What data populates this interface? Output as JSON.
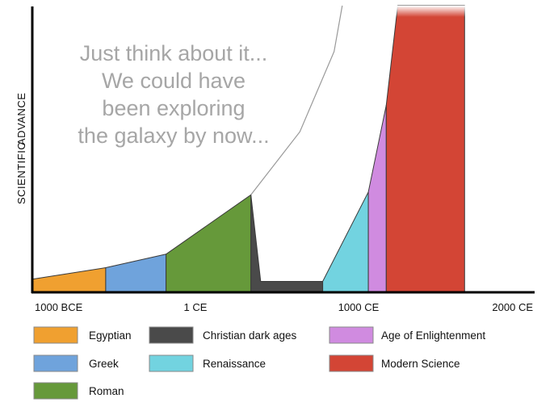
{
  "chart_data": {
    "type": "area",
    "title": "",
    "xlabel": "",
    "ylabel": [
      "SCIENTIFIC",
      "ADVANCE"
    ],
    "xlim": [
      -1000,
      2000
    ],
    "ylim": [
      0,
      100
    ],
    "grid": false,
    "x_ticks": [
      {
        "value": -1000,
        "label": "1000 BCE"
      },
      {
        "value": 0,
        "label": "1 CE"
      },
      {
        "value": 1000,
        "label": "1000 CE"
      },
      {
        "value": 2000,
        "label": "2000 CE"
      }
    ],
    "annotation": {
      "lines": [
        "Just think about it...",
        "We could have",
        "been exploring",
        "the galaxy by now..."
      ],
      "color": "#a6a6a6"
    },
    "series": [
      {
        "name": "Egyptian",
        "color": "#f0a030",
        "points": [
          [
            -1000,
            4.6
          ],
          [
            -550,
            8.6
          ],
          [
            -550,
            0
          ],
          [
            -1000,
            0
          ]
        ]
      },
      {
        "name": "Greek",
        "color": "#6fa3dc",
        "points": [
          [
            -550,
            8.6
          ],
          [
            -180,
            13.3
          ],
          [
            -180,
            0
          ],
          [
            -550,
            0
          ]
        ]
      },
      {
        "name": "Roman",
        "color": "#66993a",
        "points": [
          [
            -180,
            13.3
          ],
          [
            340,
            34.0
          ],
          [
            340,
            0
          ],
          [
            -180,
            0
          ]
        ]
      },
      {
        "name": "Christian dark ages",
        "color": "#4a4a4a",
        "points": [
          [
            340,
            34.0
          ],
          [
            400,
            3.8
          ],
          [
            780,
            3.8
          ],
          [
            780,
            0
          ],
          [
            340,
            0
          ]
        ]
      },
      {
        "name": "Renaissance",
        "color": "#72d3e0",
        "points": [
          [
            780,
            3.8
          ],
          [
            1060,
            35.0
          ],
          [
            1060,
            0
          ],
          [
            780,
            0
          ]
        ]
      },
      {
        "name": "Age of Enlightenment",
        "color": "#d08be0",
        "points": [
          [
            1060,
            35.0
          ],
          [
            1170,
            65.3
          ],
          [
            1170,
            0
          ],
          [
            1060,
            0
          ]
        ]
      },
      {
        "name": "Modern Science",
        "color": "#d34535",
        "points": [
          [
            1170,
            65.3
          ],
          [
            1240,
            100
          ],
          [
            1650,
            100
          ],
          [
            1650,
            0
          ],
          [
            1170,
            0
          ]
        ]
      }
    ],
    "projection": {
      "color": "#999999",
      "points": [
        [
          340,
          34.0
        ],
        [
          640,
          56.0
        ],
        [
          850,
          84.0
        ],
        [
          900,
          100
        ]
      ]
    }
  }
}
